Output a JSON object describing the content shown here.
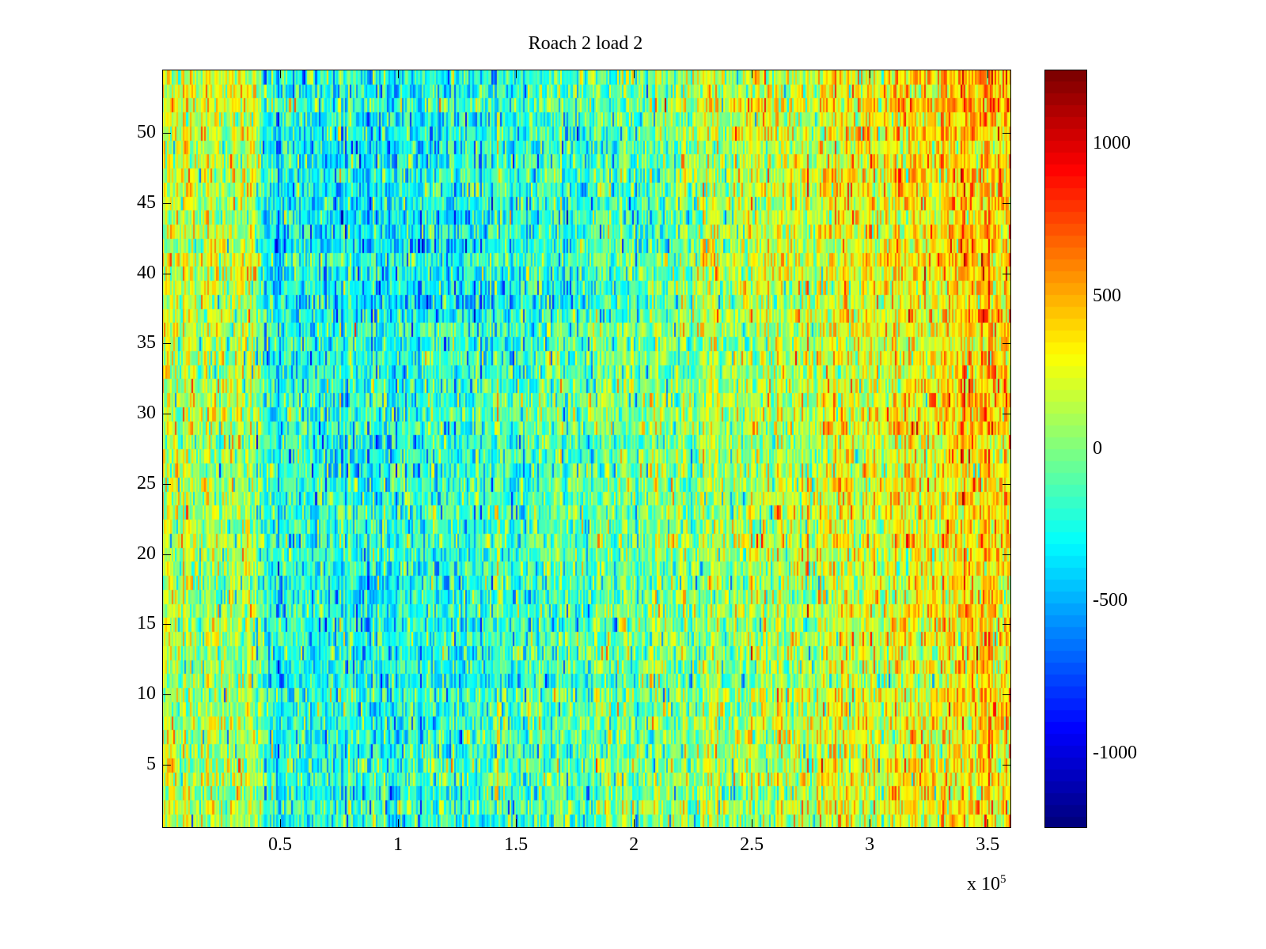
{
  "chart_data": {
    "type": "heatmap",
    "title": "Roach 2 load 2",
    "xlabel": "",
    "ylabel": "",
    "x_multiplier": "x 10",
    "x_multiplier_exp": "5",
    "xlim": [
      0,
      3.6
    ],
    "ylim": [
      0.5,
      54.5
    ],
    "rows": 54,
    "columns": 520,
    "xticks": [
      0.5,
      1,
      1.5,
      2,
      2.5,
      3,
      3.5
    ],
    "xtick_labels": [
      "0.5",
      "1",
      "1.5",
      "2",
      "2.5",
      "3",
      "3.5"
    ],
    "yticks": [
      5,
      10,
      15,
      20,
      25,
      30,
      35,
      40,
      45,
      50
    ],
    "ytick_labels": [
      "5",
      "10",
      "15",
      "20",
      "25",
      "30",
      "35",
      "40",
      "45",
      "50"
    ],
    "colormap": "jet",
    "clim": [
      -1245,
      1245
    ],
    "colorbar_ticks": [
      1000,
      500,
      0,
      -500,
      -1000
    ],
    "colorbar_labels": [
      "1000",
      "500",
      "0",
      "-500",
      "-1000"
    ],
    "mean_profile": {
      "x": [
        0,
        0.2,
        0.4,
        0.5,
        1.0,
        1.5,
        2.0,
        2.5,
        3.0,
        3.3,
        3.6
      ],
      "value": [
        150,
        130,
        20,
        -230,
        -250,
        -160,
        -60,
        90,
        230,
        320,
        350
      ]
    },
    "noise_std": 260
  }
}
